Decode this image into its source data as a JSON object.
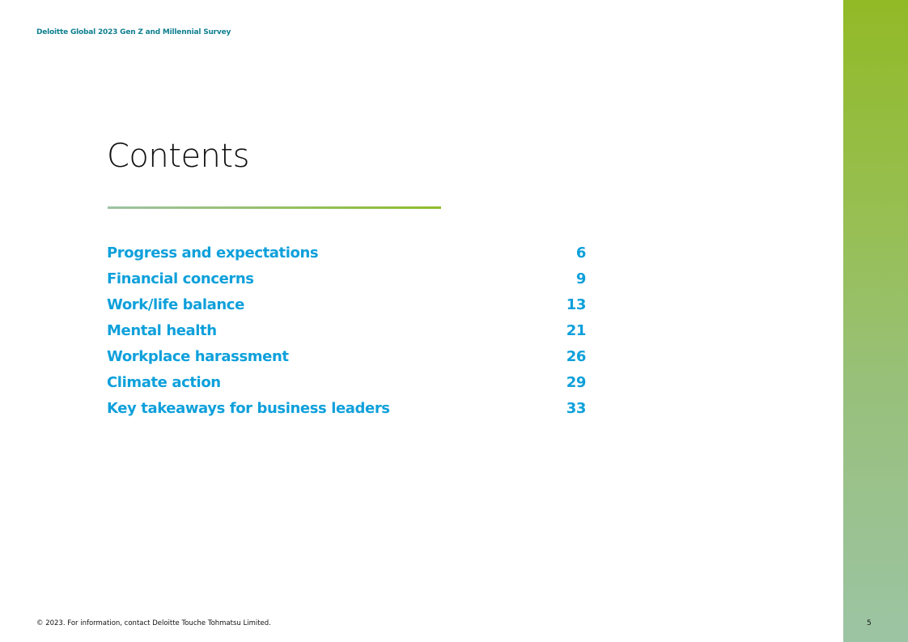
{
  "header": {
    "title": "Deloitte Global 2023 Gen Z and Millennial Survey"
  },
  "page_title": "Contents",
  "toc": [
    {
      "label": "Progress and expectations",
      "page": "6"
    },
    {
      "label": "Financial concerns",
      "page": "9"
    },
    {
      "label": "Work/life balance",
      "page": "13"
    },
    {
      "label": "Mental health",
      "page": "21"
    },
    {
      "label": "Workplace harassment",
      "page": "26"
    },
    {
      "label": "Climate action",
      "page": "29"
    },
    {
      "label": "Key takeaways for business leaders",
      "page": "33"
    }
  ],
  "footer": {
    "copyright": "© 2023. For information, contact Deloitte Touche Tohmatsu Limited.",
    "page_number": "5"
  },
  "colors": {
    "accent_blue": "#0ea0db",
    "header_teal": "#0f7f8f",
    "sidebar_top": "#92ba26",
    "sidebar_bottom": "#9cc4a4"
  }
}
